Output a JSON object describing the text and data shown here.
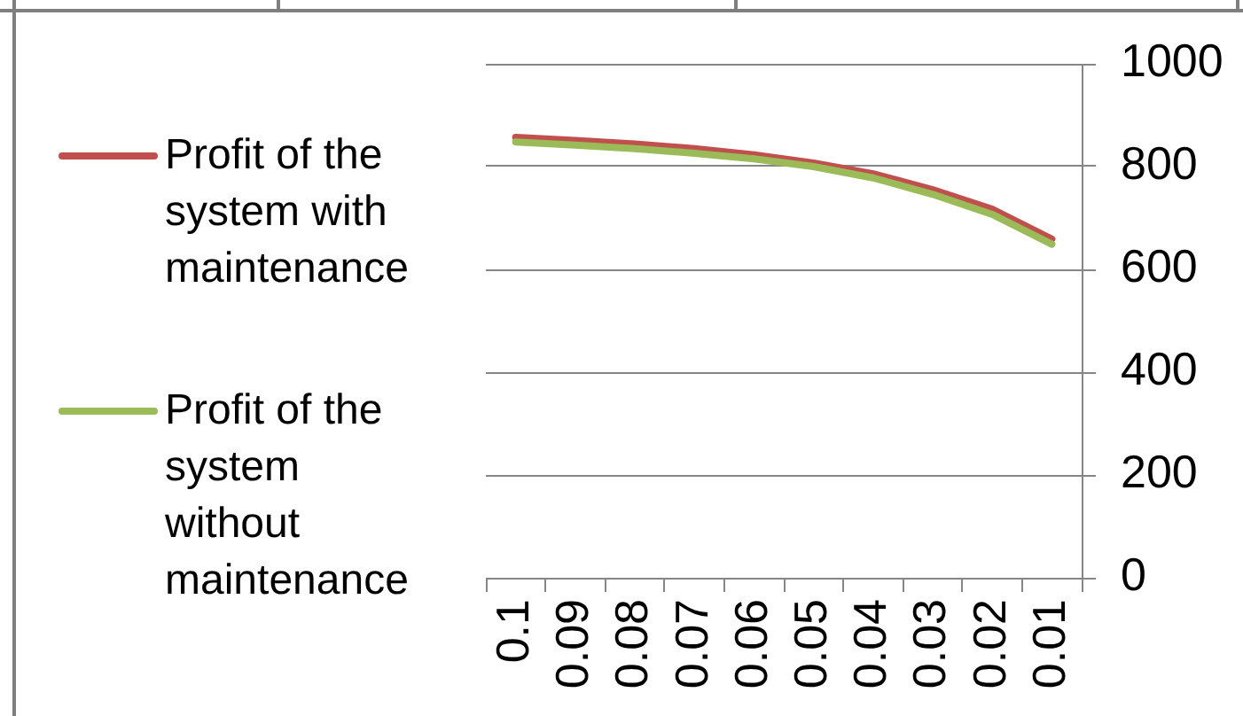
{
  "chart_data": {
    "type": "line",
    "categories": [
      "0.1",
      "0.09",
      "0.08",
      "0.07",
      "0.06",
      "0.05",
      "0.04",
      "0.03",
      "0.02",
      "0.01"
    ],
    "series": [
      {
        "name": "Profit of the system with maintenance",
        "color": "#c0504d",
        "values": [
          857,
          851,
          844,
          835,
          823,
          807,
          786,
          755,
          717,
          659
        ]
      },
      {
        "name": "Profit of the system without maintenance",
        "color": "#9bbb59",
        "values": [
          848,
          842,
          835,
          826,
          815,
          800,
          778,
          746,
          707,
          649
        ]
      }
    ],
    "ylim": [
      0,
      1000
    ],
    "yticks": [
      0,
      200,
      400,
      600,
      800,
      1000
    ],
    "grid": "y",
    "legend": "left",
    "marker": "none"
  }
}
